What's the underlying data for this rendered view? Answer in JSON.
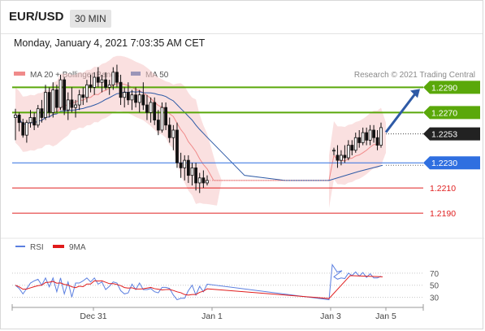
{
  "header": {
    "symbol": "EUR/USD",
    "timeframe": "30 MIN",
    "datetime": "Monday, January 4, 2021 7:03:35 AM CET"
  },
  "legend": {
    "ma20_bb_label": "MA 20 + Bollinger Bands",
    "ma20_bb_color": "#f08a8a",
    "ma50_label": "MA 50",
    "ma50_color": "#2e5aa6",
    "credit": "Research © 2021 Trading Central"
  },
  "rsi_legend": {
    "rsi_label": "RSI",
    "rsi_color": "#5b7fe0",
    "ma9_label": "9MA",
    "ma9_color": "#e01b1b"
  },
  "chart_data": [
    {
      "type": "candlestick",
      "title": "EUR/USD",
      "x_tick_labels": [
        "Dec 31",
        "Jan 1",
        "Jan 3",
        "Jan 5"
      ],
      "y_range": [
        1.217,
        1.232
      ],
      "current_price": {
        "label": "1.2253",
        "value": 1.2253,
        "color": "#222222"
      },
      "levels": [
        {
          "label": "1.2290",
          "value": 1.229,
          "color": "#5aa80a",
          "kind": "resistance"
        },
        {
          "label": "1.2270",
          "value": 1.227,
          "color": "#5aa80a",
          "kind": "resistance"
        },
        {
          "label": "1.2230",
          "value": 1.223,
          "color": "#2f6fe0",
          "kind": "pivot"
        },
        {
          "label": "1.2210",
          "value": 1.221,
          "color": "#e02020",
          "kind": "support"
        },
        {
          "label": "1.2190",
          "value": 1.219,
          "color": "#e02020",
          "kind": "support"
        }
      ],
      "forecast_arrow": {
        "from": 1.2253,
        "to": 1.229,
        "color": "#2e5aa6"
      },
      "series": [
        {
          "name": "MA 20 + Bollinger Bands",
          "color": "#f08a8a"
        },
        {
          "name": "MA 50",
          "color": "#2e5aa6"
        }
      ],
      "candles": [
        [
          1.2266,
          1.2273,
          1.2248,
          1.2268
        ],
        [
          1.2268,
          1.227,
          1.2255,
          1.2262
        ],
        [
          1.2262,
          1.2265,
          1.225,
          1.2252
        ],
        [
          1.2252,
          1.2264,
          1.2246,
          1.2262
        ],
        [
          1.2262,
          1.2272,
          1.2258,
          1.2266
        ],
        [
          1.2266,
          1.227,
          1.2256,
          1.226
        ],
        [
          1.226,
          1.2276,
          1.2258,
          1.2273
        ],
        [
          1.2273,
          1.228,
          1.2262,
          1.2266
        ],
        [
          1.2266,
          1.2292,
          1.2264,
          1.2286
        ],
        [
          1.2286,
          1.229,
          1.2266,
          1.227
        ],
        [
          1.227,
          1.2294,
          1.2266,
          1.2288
        ],
        [
          1.2288,
          1.2292,
          1.227,
          1.2274
        ],
        [
          1.2274,
          1.23,
          1.2272,
          1.2296
        ],
        [
          1.2296,
          1.2298,
          1.2268,
          1.2272
        ],
        [
          1.2272,
          1.2286,
          1.2264,
          1.228
        ],
        [
          1.228,
          1.229,
          1.227,
          1.2274
        ],
        [
          1.2274,
          1.228,
          1.2266,
          1.2276
        ],
        [
          1.2276,
          1.2288,
          1.2272,
          1.2284
        ],
        [
          1.2284,
          1.229,
          1.2276,
          1.2282
        ],
        [
          1.2282,
          1.2296,
          1.2278,
          1.2292
        ],
        [
          1.2292,
          1.23,
          1.2286,
          1.229
        ],
        [
          1.229,
          1.2302,
          1.2284,
          1.2298
        ],
        [
          1.2298,
          1.2306,
          1.229,
          1.2294
        ],
        [
          1.2294,
          1.23,
          1.2286,
          1.2296
        ],
        [
          1.2296,
          1.2302,
          1.2288,
          1.229
        ],
        [
          1.229,
          1.2296,
          1.2284,
          1.2292
        ],
        [
          1.2292,
          1.2306,
          1.2288,
          1.2302
        ],
        [
          1.2302,
          1.2308,
          1.229,
          1.2294
        ],
        [
          1.2294,
          1.23,
          1.2276,
          1.2282
        ],
        [
          1.2282,
          1.229,
          1.2274,
          1.2286
        ],
        [
          1.2286,
          1.2294,
          1.2276,
          1.228
        ],
        [
          1.228,
          1.2288,
          1.2272,
          1.2284
        ],
        [
          1.2284,
          1.229,
          1.2274,
          1.2278
        ],
        [
          1.2278,
          1.2288,
          1.227,
          1.2284
        ],
        [
          1.2284,
          1.2294,
          1.2272,
          1.2276
        ],
        [
          1.2276,
          1.2284,
          1.2264,
          1.227
        ],
        [
          1.227,
          1.2282,
          1.2262,
          1.2278
        ],
        [
          1.2278,
          1.2282,
          1.226,
          1.2264
        ],
        [
          1.2264,
          1.2272,
          1.2252,
          1.2256
        ],
        [
          1.2256,
          1.2278,
          1.2254,
          1.2274
        ],
        [
          1.2274,
          1.2278,
          1.2256,
          1.226
        ],
        [
          1.226,
          1.2266,
          1.2246,
          1.225
        ],
        [
          1.225,
          1.226,
          1.224,
          1.2256
        ],
        [
          1.2256,
          1.2262,
          1.2226,
          1.223
        ],
        [
          1.223,
          1.2238,
          1.2218,
          1.2226
        ],
        [
          1.2226,
          1.2236,
          1.2216,
          1.2232
        ],
        [
          1.2232,
          1.2236,
          1.2214,
          1.222
        ],
        [
          1.222,
          1.223,
          1.2212,
          1.2226
        ],
        [
          1.2226,
          1.223,
          1.2208,
          1.2214
        ],
        [
          1.2214,
          1.2222,
          1.2206,
          1.2218
        ],
        [
          1.2218,
          1.2224,
          1.221,
          1.2214
        ],
        [
          1.2214,
          1.222,
          1.2212,
          1.2216
        ]
      ],
      "candles_after_gap": [
        [
          1.224,
          1.2242,
          1.2236,
          1.224
        ],
        [
          1.2236,
          1.2244,
          1.2226,
          1.2232
        ],
        [
          1.2232,
          1.224,
          1.2228,
          1.2236
        ],
        [
          1.2236,
          1.2244,
          1.223,
          1.2234
        ],
        [
          1.2234,
          1.2248,
          1.2232,
          1.2244
        ],
        [
          1.2244,
          1.2248,
          1.2236,
          1.224
        ],
        [
          1.224,
          1.2254,
          1.2238,
          1.225
        ],
        [
          1.225,
          1.2256,
          1.2242,
          1.2246
        ],
        [
          1.2246,
          1.2258,
          1.2244,
          1.2254
        ],
        [
          1.2254,
          1.2258,
          1.2244,
          1.2248
        ],
        [
          1.2248,
          1.226,
          1.2244,
          1.2256
        ],
        [
          1.2256,
          1.226,
          1.2246,
          1.225
        ],
        [
          1.225,
          1.2256,
          1.224,
          1.2244
        ],
        [
          1.2244,
          1.2262,
          1.2242,
          1.2258
        ]
      ]
    },
    {
      "type": "line",
      "title": "RSI",
      "y_tick_labels": [
        "70",
        "50",
        "30"
      ],
      "y_ticks": [
        70,
        50,
        30
      ],
      "y_range": [
        20,
        90
      ],
      "series": [
        {
          "name": "RSI",
          "color": "#5b7fe0"
        },
        {
          "name": "9MA",
          "color": "#e01b1b"
        }
      ]
    }
  ]
}
